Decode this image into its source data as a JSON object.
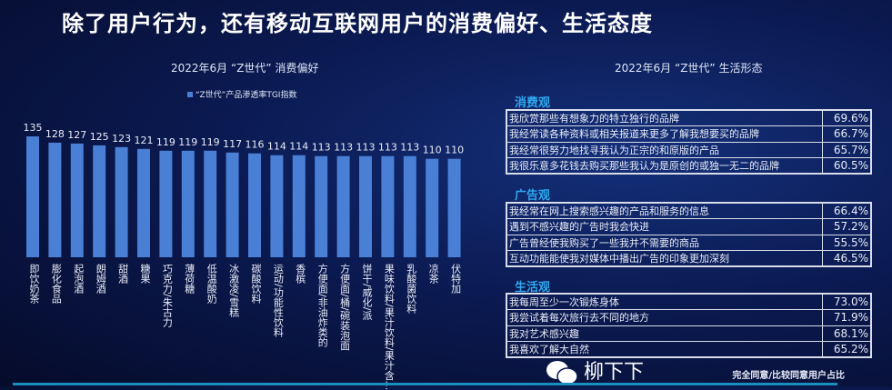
{
  "title": "除了用户行为，还有移动互联网用户的消费偏好、生活态度",
  "chart_data": {
    "type": "bar",
    "title": "2022年6月 “Z世代” 消费偏好",
    "legend": "“Z世代”产品渗透率TGI指数",
    "legend_position": "top",
    "color": "#4a7fd6",
    "grid": false,
    "categories": [
      "即饮奶茶",
      "膨化食品",
      "起泡酒",
      "朗姆酒",
      "甜酒",
      "糖果",
      "巧克力/朱古力",
      "薄荷糖",
      "低温酸奶",
      "冰激凌/雪糕",
      "碳酸饮料",
      "运动/功能性饮料",
      "香槟",
      "方便面/非油炸类的",
      "方便面/桶/碗装泡面",
      "饼干/威化/派",
      "果味饮料/果汁饮料/果汁含…",
      "乳酸菌饮料",
      "凉茶",
      "伏特加"
    ],
    "values": [
      135,
      128,
      127,
      125,
      123,
      121,
      119,
      119,
      119,
      117,
      116,
      114,
      114,
      113,
      113,
      113,
      113,
      113,
      110,
      110
    ]
  },
  "right": {
    "title": "2022年6月 “Z世代” 生活形态",
    "sections": [
      {
        "name": "消费观",
        "rows": [
          [
            "我欣赏那些有想象力的特立独行的品牌",
            "69.6%"
          ],
          [
            "我经常读各种资料或相关报道来更多了解我想要买的品牌",
            "66.7%"
          ],
          [
            "我经常很努力地找寻我认为正宗的和原版的产品",
            "65.7%"
          ],
          [
            "我很乐意多花钱去购买那些我认为是原创的或独一无二的品牌",
            "60.5%"
          ]
        ]
      },
      {
        "name": "广告观",
        "rows": [
          [
            "我经常在网上搜索感兴趣的产品和服务的信息",
            "66.4%"
          ],
          [
            "遇到不感兴趣的广告时我会快进",
            "57.2%"
          ],
          [
            "广告曾经使我购买了一些我并不需要的商品",
            "55.5%"
          ],
          [
            "互动功能能使我对媒体中播出广告的印象更加深刻",
            "46.5%"
          ]
        ]
      },
      {
        "name": "生活观",
        "rows": [
          [
            "我每周至少一次锻炼身体",
            "73.0%"
          ],
          [
            "我尝试着每次旅行去不同的地方",
            "71.9%"
          ],
          [
            "我对艺术感兴趣",
            "68.1%"
          ],
          [
            "我喜欢了解大自然",
            "65.2%"
          ]
        ]
      }
    ],
    "footnote": "完全同意/比较同意用户占比"
  },
  "watermark": "柳下下"
}
